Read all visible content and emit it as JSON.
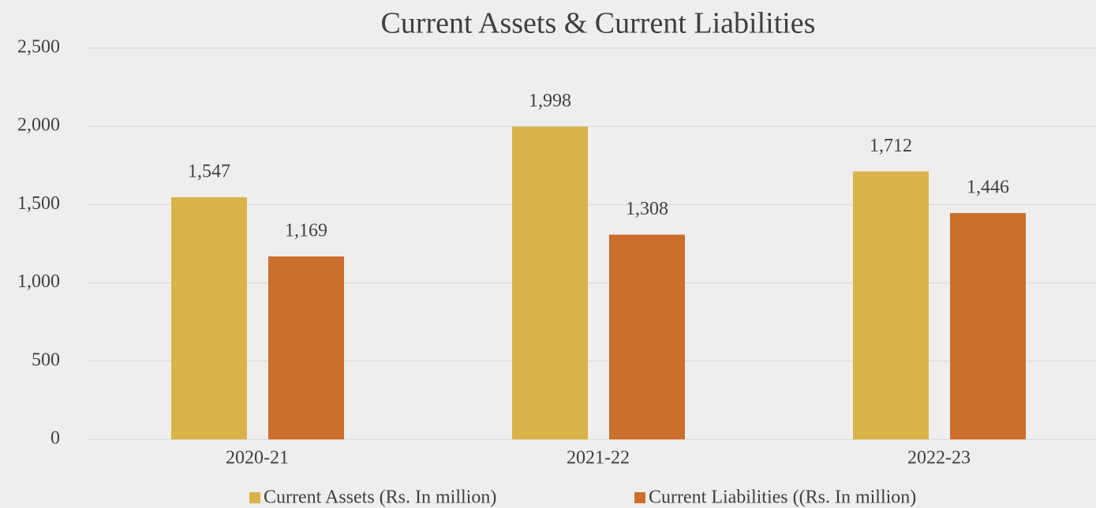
{
  "chart_data": {
    "type": "bar",
    "title": "Current Assets & Current Liabilities",
    "categories": [
      "2020-21",
      "2021-22",
      "2022-23"
    ],
    "series": [
      {
        "name": "Current Assets (Rs. In million)",
        "color": "#d9b24a",
        "values": [
          1547,
          1998,
          1712
        ],
        "value_labels": [
          "1,547",
          "1,998",
          "1,712"
        ]
      },
      {
        "name": "Current Liabilities ((Rs. In million)",
        "color": "#cc6e2e",
        "values": [
          1169,
          1308,
          1446
        ],
        "value_labels": [
          "1,169",
          "1,308",
          "1,446"
        ]
      }
    ],
    "ylim": [
      0,
      2500
    ],
    "yticks": [
      0,
      500,
      {
        "value": 1000,
        "label": "1,000"
      },
      {
        "value": 1500,
        "label": "1,500"
      },
      {
        "value": 2000,
        "label": "2,000"
      },
      {
        "value": 2500,
        "label": "2,500"
      }
    ],
    "grid": true,
    "legend": "bottom"
  }
}
